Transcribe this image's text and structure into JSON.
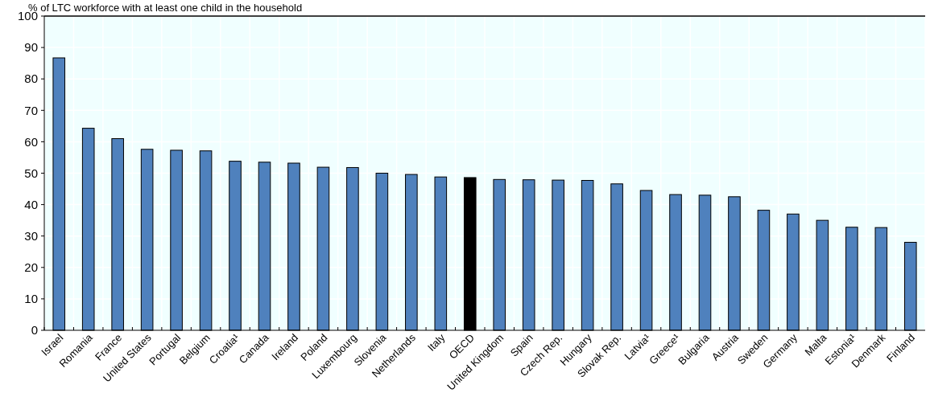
{
  "chart_data": {
    "type": "bar",
    "ylabel": "% of LTC workforce with at least one child in the household",
    "categories": [
      "Israel",
      "Romania",
      "France",
      "United States",
      "Portugal",
      "Belgium",
      "Croatia¹",
      "Canada",
      "Ireland",
      "Poland",
      "Luxembourg",
      "Slovenia",
      "Netherlands",
      "Italy",
      "OECD",
      "United Kingdom",
      "Spain",
      "Czech Rep.",
      "Hungary",
      "Slovak Rep.",
      "Latvia¹",
      "Greece¹",
      "Bulgaria",
      "Austria",
      "Sweden",
      "Germany",
      "Malta",
      "Estonia¹",
      "Denmark",
      "Finland"
    ],
    "values": [
      86.7,
      64.3,
      61,
      57.6,
      57.3,
      57.1,
      53.8,
      53.5,
      53.2,
      51.9,
      51.8,
      50,
      49.6,
      48.8,
      48.6,
      48,
      47.9,
      47.8,
      47.7,
      46.6,
      44.5,
      43.2,
      43,
      42.5,
      38.2,
      37,
      35,
      32.8,
      32.7,
      28
    ],
    "colors": [
      "#4f81bd",
      "#4f81bd",
      "#4f81bd",
      "#4f81bd",
      "#4f81bd",
      "#4f81bd",
      "#4f81bd",
      "#4f81bd",
      "#4f81bd",
      "#4f81bd",
      "#4f81bd",
      "#4f81bd",
      "#4f81bd",
      "#4f81bd",
      "#000000",
      "#4f81bd",
      "#4f81bd",
      "#4f81bd",
      "#4f81bd",
      "#4f81bd",
      "#4f81bd",
      "#4f81bd",
      "#4f81bd",
      "#4f81bd",
      "#4f81bd",
      "#4f81bd",
      "#4f81bd",
      "#4f81bd",
      "#4f81bd",
      "#4f81bd"
    ],
    "ylim": [
      0,
      100
    ],
    "yticks": [
      0,
      10,
      20,
      30,
      40,
      50,
      60,
      70,
      80,
      90,
      100
    ],
    "grid": true
  }
}
